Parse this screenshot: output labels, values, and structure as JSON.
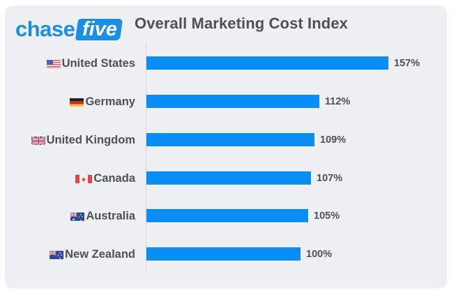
{
  "brand": {
    "logo_part1": "chase",
    "logo_part2": "five",
    "brand_color": "#1a8fe6"
  },
  "chart_data": {
    "type": "bar",
    "orientation": "horizontal",
    "title": "Overall Marketing Cost Index",
    "categories": [
      "United States",
      "Germany",
      "United Kingdom",
      "Canada",
      "Australia",
      "New Zealand"
    ],
    "values": [
      157,
      112,
      109,
      107,
      105,
      100
    ],
    "value_labels": [
      "157%",
      "112%",
      "109%",
      "107%",
      "105%",
      "100%"
    ],
    "unit": "%",
    "bar_color": "#0a8df5",
    "xlabel": "",
    "ylabel": "",
    "grid": false,
    "legend": "none",
    "flags": [
      "us-flag",
      "de-flag",
      "gb-flag",
      "ca-flag",
      "au-flag",
      "nz-flag"
    ]
  }
}
